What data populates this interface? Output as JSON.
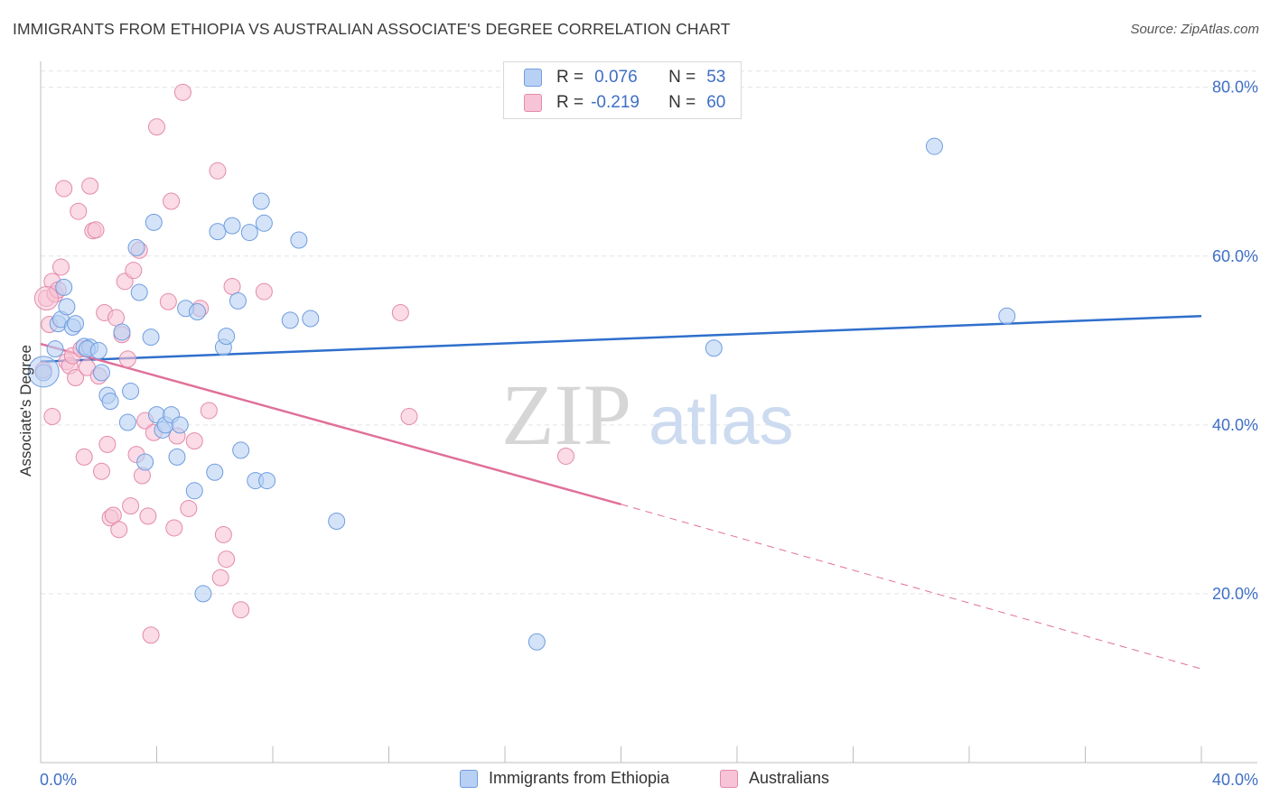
{
  "title": "IMMIGRANTS FROM ETHIOPIA VS AUSTRALIAN ASSOCIATE'S DEGREE CORRELATION CHART",
  "source": "Source: ZipAtlas.com",
  "watermark": {
    "zip": "ZIP",
    "atlas": "atlas"
  },
  "legend": {
    "rows": [
      {
        "r_label": "R =",
        "r_value": "0.076",
        "n_label": "N =",
        "n_value": "53"
      },
      {
        "r_label": "R =",
        "r_value": "-0.219",
        "n_label": "N =",
        "n_value": "60"
      }
    ]
  },
  "colors": {
    "blue_fill": "#b8d0f3",
    "blue_stroke": "#6f9ddf",
    "blue_line": "#2f6fcc",
    "pink_fill": "#f7c3d6",
    "pink_stroke": "#e48aab",
    "pink_line": "#e0709a",
    "grid": "#e3e3e3",
    "tick_text": "#3f6fc6"
  },
  "chart_data": {
    "type": "scatter",
    "title": "IMMIGRANTS FROM ETHIOPIA VS AUSTRALIAN ASSOCIATE'S DEGREE CORRELATION CHART",
    "xlabel": "",
    "ylabel": "Associate's Degree",
    "xlim": [
      0,
      40
    ],
    "ylim": [
      0,
      82
    ],
    "x_tick_labels": [
      "0.0%",
      "40.0%"
    ],
    "y_ticks": [
      20,
      40,
      60,
      80
    ],
    "y_tick_labels": [
      "20.0%",
      "40.0%",
      "60.0%",
      "80.0%"
    ],
    "grid": true,
    "legend_position": "bottom",
    "series": [
      {
        "name": "Immigrants from Ethiopia",
        "color": "#6f9ddf",
        "points": [
          [
            0.1,
            46.2
          ],
          [
            0.5,
            49.0
          ],
          [
            0.6,
            52.0
          ],
          [
            0.7,
            52.5
          ],
          [
            0.8,
            56.3
          ],
          [
            0.9,
            54.0
          ],
          [
            1.1,
            51.6
          ],
          [
            1.2,
            52.0
          ],
          [
            1.5,
            49.3
          ],
          [
            1.7,
            49.2
          ],
          [
            2.1,
            46.2
          ],
          [
            2.3,
            43.5
          ],
          [
            2.4,
            42.8
          ],
          [
            2.8,
            51.0
          ],
          [
            3.1,
            44.0
          ],
          [
            3.3,
            61.0
          ],
          [
            3.4,
            55.7
          ],
          [
            3.6,
            35.6
          ],
          [
            3.8,
            50.4
          ],
          [
            3.9,
            64.0
          ],
          [
            4.0,
            41.2
          ],
          [
            4.2,
            39.4
          ],
          [
            4.3,
            40.0
          ],
          [
            4.5,
            41.2
          ],
          [
            4.7,
            36.2
          ],
          [
            4.8,
            40.0
          ],
          [
            5.0,
            53.8
          ],
          [
            5.3,
            32.2
          ],
          [
            5.4,
            53.4
          ],
          [
            5.6,
            20.0
          ],
          [
            6.0,
            34.4
          ],
          [
            6.1,
            62.9
          ],
          [
            6.3,
            49.2
          ],
          [
            6.4,
            50.5
          ],
          [
            6.6,
            63.6
          ],
          [
            6.8,
            54.7
          ],
          [
            6.9,
            37.0
          ],
          [
            7.2,
            62.8
          ],
          [
            7.4,
            33.4
          ],
          [
            7.6,
            66.5
          ],
          [
            7.8,
            33.4
          ],
          [
            7.7,
            63.9
          ],
          [
            8.6,
            52.4
          ],
          [
            8.9,
            61.9
          ],
          [
            9.3,
            52.6
          ],
          [
            10.2,
            28.6
          ],
          [
            17.1,
            14.3
          ],
          [
            23.2,
            49.1
          ],
          [
            30.8,
            73.0
          ],
          [
            33.3,
            52.9
          ],
          [
            3.0,
            40.3
          ],
          [
            1.6,
            49.0
          ],
          [
            2.0,
            48.8
          ]
        ]
      },
      {
        "name": "Australians",
        "color": "#e48aab",
        "points": [
          [
            0.1,
            46.5
          ],
          [
            0.2,
            55.0
          ],
          [
            0.3,
            51.9
          ],
          [
            0.4,
            57.0
          ],
          [
            0.5,
            55.5
          ],
          [
            0.6,
            56.0
          ],
          [
            0.7,
            58.7
          ],
          [
            0.8,
            68.0
          ],
          [
            0.9,
            47.5
          ],
          [
            1.0,
            47.0
          ],
          [
            1.1,
            48.2
          ],
          [
            1.2,
            45.6
          ],
          [
            1.3,
            65.3
          ],
          [
            1.4,
            49.0
          ],
          [
            1.5,
            36.2
          ],
          [
            1.6,
            46.8
          ],
          [
            1.7,
            68.3
          ],
          [
            1.8,
            63.0
          ],
          [
            1.9,
            63.1
          ],
          [
            2.0,
            45.8
          ],
          [
            2.2,
            53.3
          ],
          [
            2.3,
            37.7
          ],
          [
            2.4,
            29.0
          ],
          [
            2.5,
            29.3
          ],
          [
            2.6,
            52.7
          ],
          [
            2.7,
            27.6
          ],
          [
            2.8,
            50.7
          ],
          [
            2.9,
            57.0
          ],
          [
            3.0,
            47.8
          ],
          [
            3.1,
            30.4
          ],
          [
            3.2,
            58.3
          ],
          [
            3.3,
            36.5
          ],
          [
            3.4,
            60.7
          ],
          [
            3.5,
            34.0
          ],
          [
            3.6,
            40.5
          ],
          [
            3.7,
            29.2
          ],
          [
            3.8,
            15.1
          ],
          [
            3.9,
            39.1
          ],
          [
            4.0,
            75.3
          ],
          [
            4.4,
            54.6
          ],
          [
            4.5,
            66.5
          ],
          [
            4.6,
            27.8
          ],
          [
            4.7,
            38.7
          ],
          [
            4.9,
            79.4
          ],
          [
            5.1,
            30.1
          ],
          [
            5.3,
            38.1
          ],
          [
            5.5,
            53.8
          ],
          [
            5.8,
            41.7
          ],
          [
            6.1,
            70.1
          ],
          [
            6.2,
            21.9
          ],
          [
            6.3,
            27.0
          ],
          [
            6.4,
            24.1
          ],
          [
            6.6,
            56.4
          ],
          [
            6.9,
            18.1
          ],
          [
            7.7,
            55.8
          ],
          [
            12.4,
            53.3
          ],
          [
            12.7,
            41.0
          ],
          [
            18.1,
            36.3
          ],
          [
            0.4,
            41.0
          ],
          [
            2.1,
            34.5
          ]
        ]
      }
    ],
    "trend_lines": [
      {
        "series": "Immigrants from Ethiopia",
        "x": [
          0,
          40
        ],
        "y": [
          47.5,
          52.9
        ],
        "style": "solid"
      },
      {
        "series": "Australians",
        "x": [
          0,
          20,
          40
        ],
        "y": [
          49.6,
          30.6,
          11.1
        ],
        "style": "solid then dashed"
      }
    ]
  }
}
